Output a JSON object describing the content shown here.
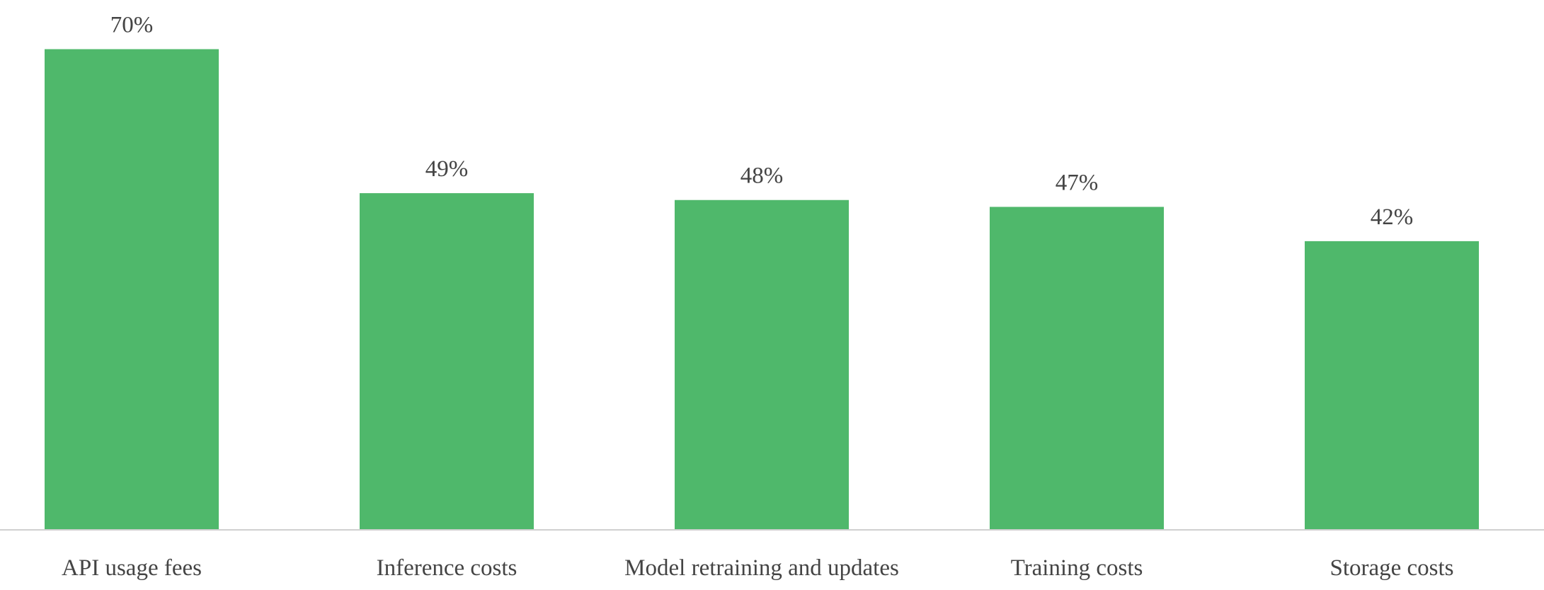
{
  "chart_data": {
    "type": "bar",
    "categories": [
      "API usage fees",
      "Inference costs",
      "Model retraining and updates",
      "Training costs",
      "Storage costs"
    ],
    "values": [
      70,
      49,
      48,
      47,
      42
    ],
    "value_labels": [
      "70%",
      "49%",
      "48%",
      "47%",
      "42%"
    ],
    "color": "#4fb86b"
  }
}
